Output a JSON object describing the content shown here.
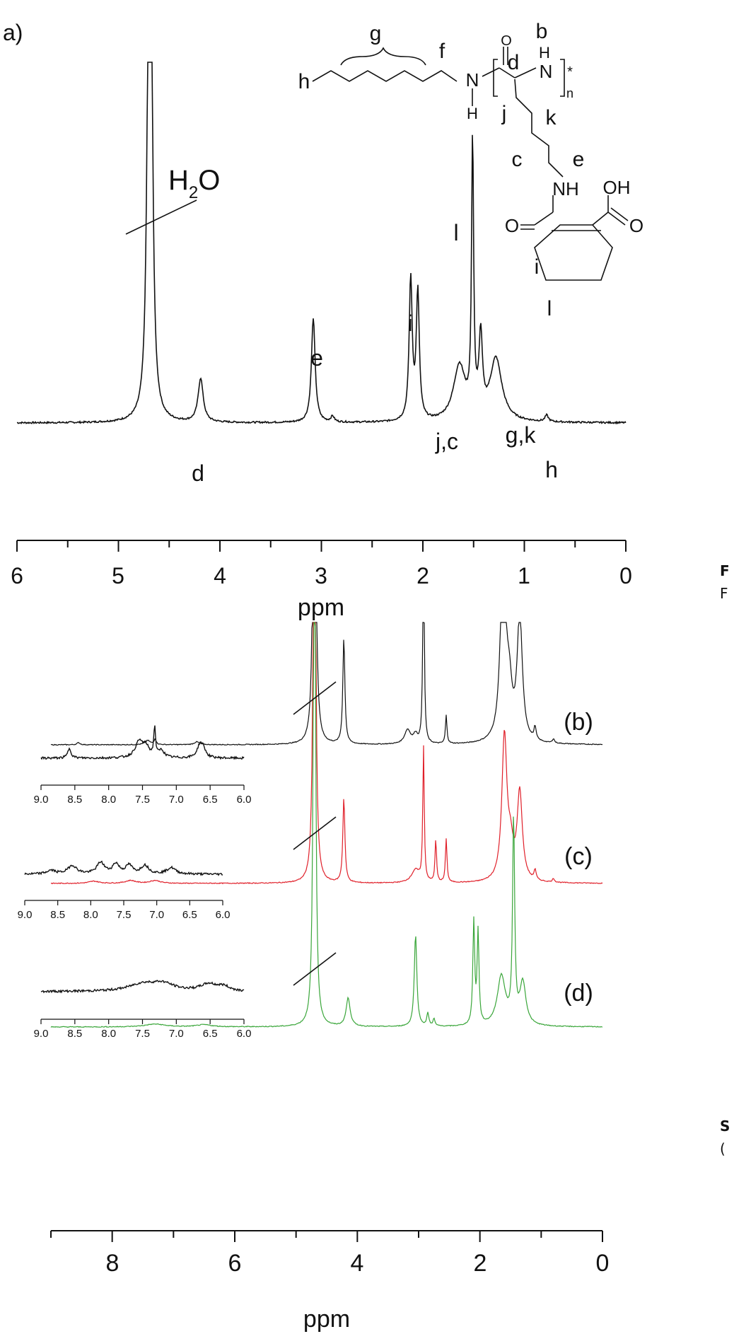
{
  "panel_a": {
    "panel_label": "a)",
    "water_label_main": "H",
    "water_label_sub": "2",
    "water_label_end": "O",
    "structure_labels": {
      "g": "g",
      "f": "f",
      "h": "h",
      "b": "b",
      "d": "d",
      "j": "j",
      "k": "k",
      "c": "c",
      "e": "e",
      "i": "i",
      "l": "l",
      "N1": "N",
      "H1": "H",
      "O_carbonyl": "O",
      "H2": "H",
      "N2": "N",
      "star": "*",
      "n": "n",
      "NH": "NH",
      "OH": "OH",
      "O_left": "O",
      "O_right": "O"
    }
  },
  "panel_bcd": {
    "inset_ticks": [
      "9.0",
      "8.5",
      "8.0",
      "7.5",
      "7.0",
      "6.5",
      "6.0"
    ]
  },
  "edge_text": {
    "top": "F",
    "top2": "F",
    "bottom": "S",
    "bottom2": "("
  },
  "colors": {
    "b": "#111111",
    "c": "#e0202a",
    "d": "#3aa63a",
    "axis": "#111111",
    "bg": "#ffffff"
  },
  "chart_data": [
    {
      "type": "line",
      "xlabel": "ppm",
      "xlim": [
        6,
        0
      ],
      "x_ticks": [
        "6",
        "5",
        "4",
        "3",
        "2",
        "1",
        "0"
      ],
      "peaks": [
        {
          "ppm": 4.7,
          "label": "H2O"
        },
        {
          "ppm": 4.19,
          "label": "d"
        },
        {
          "ppm": 3.08,
          "label": "e"
        },
        {
          "ppm": 2.12,
          "label": "i"
        },
        {
          "ppm": 2.06,
          "label": "i"
        },
        {
          "ppm": 1.64,
          "label": "j,c"
        },
        {
          "ppm": 1.5,
          "label": "l"
        },
        {
          "ppm": 1.43,
          "label": "l"
        },
        {
          "ppm": 1.28,
          "label": "g,k"
        },
        {
          "ppm": 0.78,
          "label": "h"
        }
      ],
      "peak_labels": [
        "d",
        "e",
        "i",
        "j,c",
        "l",
        "g,k",
        "h"
      ]
    },
    {
      "type": "line",
      "xlabel": "ppm",
      "xlim": [
        9,
        0
      ],
      "x_ticks": [
        "8",
        "6",
        "4",
        "2",
        "0"
      ],
      "series": [
        {
          "name": "(b)",
          "peaks_ppm": [
            4.7,
            4.22,
            2.92,
            2.55,
            1.62,
            1.35,
            1.1,
            0.8
          ]
        },
        {
          "name": "(c)",
          "peaks_ppm": [
            4.7,
            4.22,
            2.92,
            2.72,
            2.55,
            1.6,
            1.35,
            1.1
          ]
        },
        {
          "name": "(d)",
          "peaks_ppm": [
            4.7,
            4.15,
            3.05,
            2.85,
            2.1,
            2.03,
            1.62,
            1.45,
            1.3
          ]
        }
      ]
    }
  ]
}
